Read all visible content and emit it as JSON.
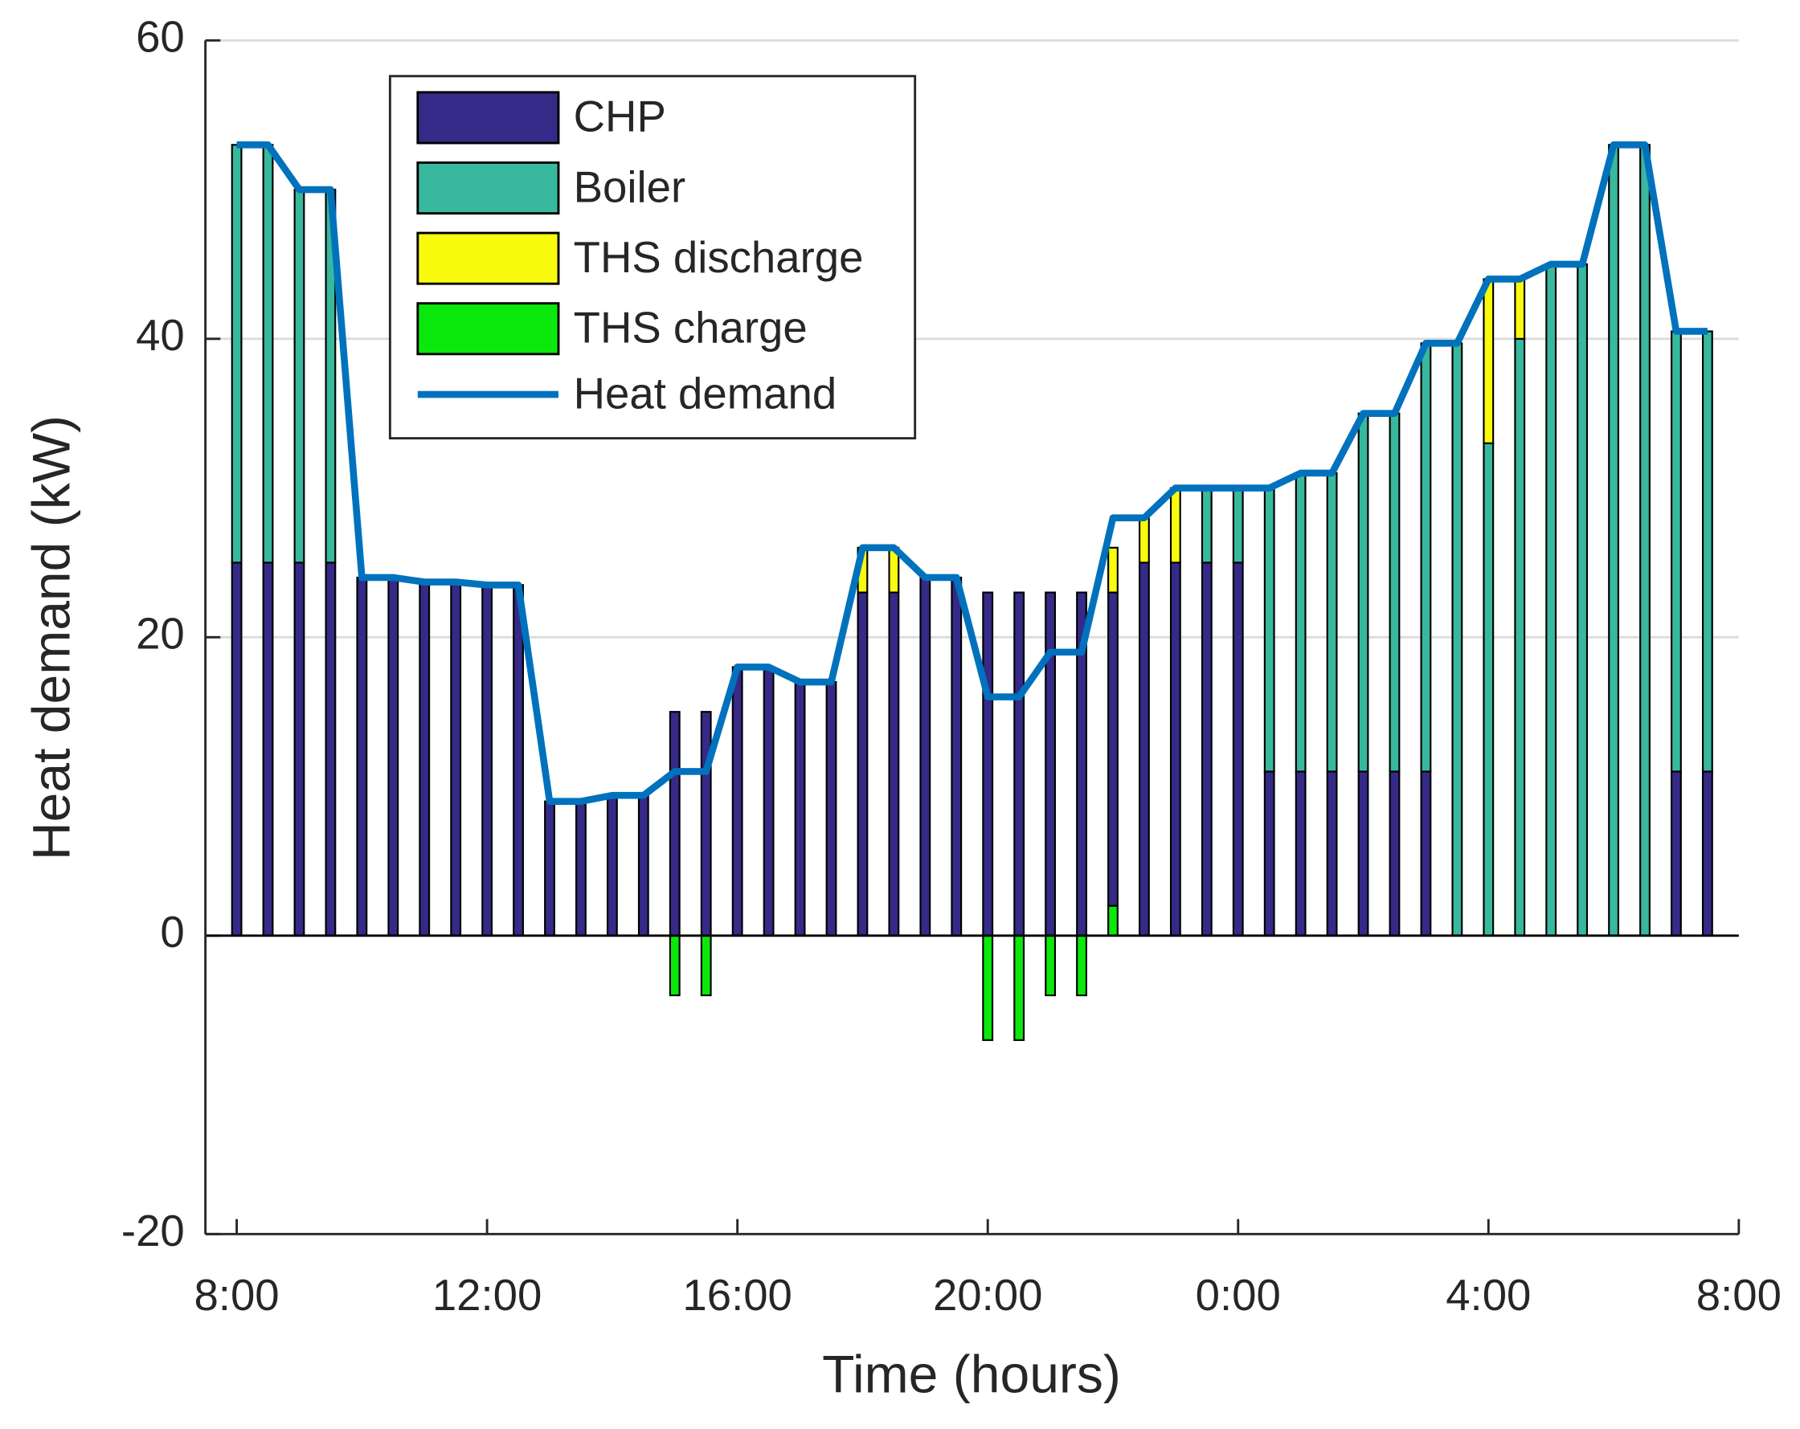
{
  "chart_data": {
    "type": "bar",
    "xlabel": "Time (hours)",
    "ylabel": "Heat demand (kW)",
    "x": [
      8,
      8.5,
      9,
      9.5,
      10,
      10.5,
      11,
      11.5,
      12,
      12.5,
      13,
      13.5,
      14,
      14.5,
      15,
      15.5,
      16,
      16.5,
      17,
      17.5,
      18,
      18.5,
      19,
      19.5,
      20,
      20.5,
      21,
      21.5,
      22,
      22.5,
      23,
      23.5,
      24,
      24.5,
      25,
      25.5,
      26,
      26.5,
      27,
      27.5,
      28,
      28.5,
      29,
      29.5,
      30,
      30.5,
      31,
      31.5
    ],
    "series": [
      {
        "name": "CHP",
        "color": "#352a87",
        "values": [
          25,
          25,
          25,
          25,
          24,
          24,
          23.7,
          23.7,
          23.5,
          23.5,
          9,
          9,
          9.4,
          9.4,
          15,
          15,
          18,
          18,
          17,
          17,
          23,
          23,
          24,
          24,
          23,
          23,
          23,
          23,
          21,
          25,
          25,
          25,
          25,
          11,
          11,
          11,
          11,
          11,
          11,
          0,
          0,
          0,
          0,
          0,
          0,
          0,
          11,
          11
        ]
      },
      {
        "name": "Boiler",
        "color": "#38b89c",
        "values": [
          28,
          28,
          25,
          25,
          0,
          0,
          0,
          0,
          0,
          0,
          0,
          0,
          0,
          0,
          0,
          0,
          0,
          0,
          0,
          0,
          0,
          0,
          0,
          0,
          0,
          0,
          0,
          0,
          0,
          0,
          0,
          5,
          5,
          19,
          20,
          20,
          24,
          24,
          28.7,
          39.7,
          33,
          40,
          45,
          45,
          53,
          53,
          29.5,
          29.5
        ]
      },
      {
        "name": "THS discharge",
        "color": "#f9fb0e",
        "values": [
          0,
          0,
          0,
          0,
          0,
          0,
          0,
          0,
          0,
          0,
          0,
          0,
          0,
          0,
          0,
          0,
          0,
          0,
          0,
          0,
          3,
          3,
          0,
          0,
          0,
          0,
          0,
          0,
          3,
          3,
          5,
          0,
          0,
          0,
          0,
          0,
          0,
          0,
          0,
          0,
          11,
          4,
          0,
          0,
          0,
          0,
          0,
          0
        ]
      },
      {
        "name": "THS charge",
        "color": "#0be80b",
        "values": [
          0,
          0,
          0,
          0,
          0,
          0,
          0,
          0,
          0,
          0,
          0,
          0,
          0,
          0,
          -4,
          -4,
          0,
          0,
          0,
          0,
          0,
          0,
          0,
          0,
          -7,
          -7,
          -4,
          -4,
          2,
          0,
          0,
          0,
          0,
          0,
          0,
          0,
          0,
          0,
          0,
          0,
          0,
          0,
          0,
          0,
          0,
          0,
          0,
          0
        ]
      },
      {
        "name": "Heat demand",
        "color": "#0072bd",
        "style": "line",
        "values": [
          53,
          53,
          50,
          50,
          24,
          24,
          23.7,
          23.7,
          23.5,
          23.5,
          9,
          9,
          9.4,
          9.4,
          11,
          11,
          18,
          18,
          17,
          17,
          26,
          26,
          24,
          24,
          16,
          16,
          19,
          19,
          28,
          28,
          30,
          30,
          30,
          30,
          31,
          31,
          35,
          35,
          39.7,
          39.7,
          44,
          44,
          45,
          45,
          53,
          53,
          40.5,
          40.5
        ]
      }
    ],
    "xlim": [
      7.5,
      32
    ],
    "xticks": [
      {
        "value": 8,
        "label": "8:00"
      },
      {
        "value": 12,
        "label": "12:00"
      },
      {
        "value": 16,
        "label": "16:00"
      },
      {
        "value": 20,
        "label": "20:00"
      },
      {
        "value": 24,
        "label": "0:00"
      },
      {
        "value": 28,
        "label": "4:00"
      },
      {
        "value": 32,
        "label": "8:00"
      }
    ],
    "ylim": [
      -20,
      60
    ],
    "yticks": [
      -20,
      0,
      20,
      40,
      60
    ],
    "grid": true,
    "legend": "top-left"
  }
}
